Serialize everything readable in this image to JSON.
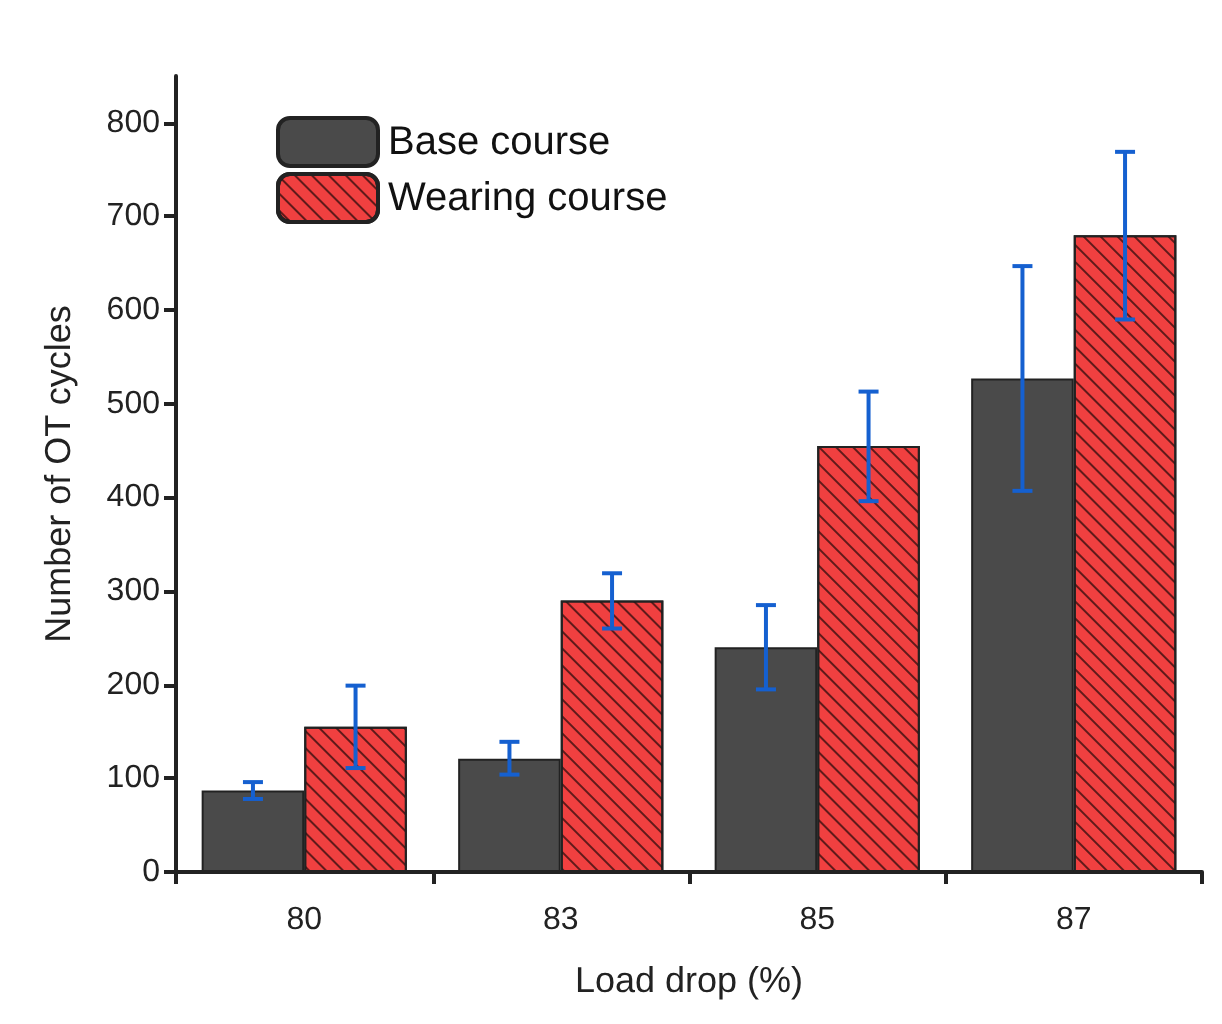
{
  "chart_data": {
    "type": "bar",
    "xlabel": "Load drop (%)",
    "ylabel": "Number of OT cycles",
    "categories": [
      "80",
      "83",
      "85",
      "87"
    ],
    "series": [
      {
        "name": "Base course",
        "color": "#4a4a4a",
        "values": [
          87,
          121,
          240,
          527
        ],
        "errors": [
          [
            78,
            96
          ],
          [
            104,
            139
          ],
          [
            195,
            285
          ],
          [
            407,
            647
          ]
        ]
      },
      {
        "name": "Wearing course",
        "color": "#f04040",
        "values": [
          155,
          290,
          455,
          680
        ],
        "errors": [
          [
            111,
            199
          ],
          [
            260,
            319
          ],
          [
            396,
            513
          ],
          [
            590,
            769
          ]
        ]
      }
    ],
    "ylim": [
      0,
      850
    ],
    "yticks": [
      0,
      100,
      200,
      300,
      400,
      500,
      600,
      700,
      800
    ],
    "grid": false,
    "legend": "top left"
  }
}
